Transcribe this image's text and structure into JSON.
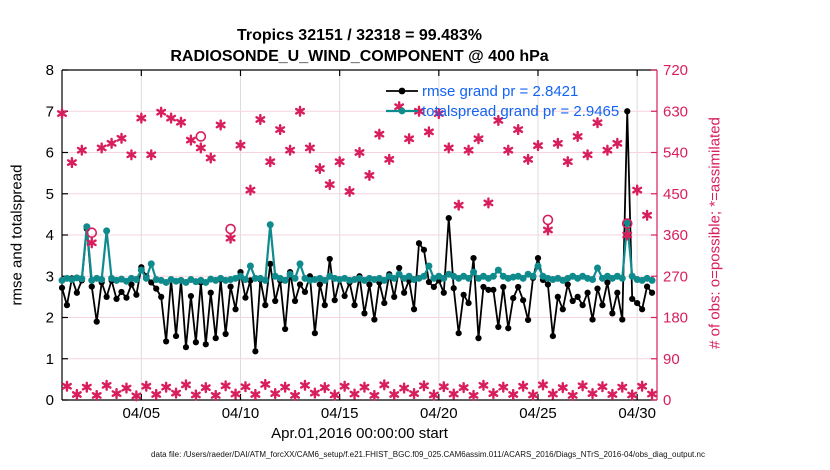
{
  "figure": {
    "footer": "data file: /Users/raeder/DAI/ATM_forcXX/CAM6_setup/f.e21.FHIST_BGC.f09_025.CAM6assim.011/ACARS_2016/Diags_NTrS_2016-04/obs_diag_output.nc"
  },
  "chart_data": {
    "type": "line",
    "title": "Tropics 32151 / 32318 = 99.483%",
    "subtitle": "RADIOSONDE_U_WIND_COMPONENT @ 400 hPa",
    "xlabel": "Apr.01,2016 00:00:00 start",
    "ylabel_left": "rmse and totalspread",
    "ylabel_right": "# of obs: o=possible; *=assimilated",
    "ylim_left": [
      0,
      8
    ],
    "ylim_right": [
      0,
      720
    ],
    "yticks_left": [
      0,
      1,
      2,
      3,
      4,
      5,
      6,
      7,
      8
    ],
    "yticks_right": [
      0,
      90,
      180,
      270,
      360,
      450,
      540,
      630,
      720
    ],
    "xticks": [
      {
        "day": 5,
        "label": "04/05"
      },
      {
        "day": 10,
        "label": "04/10"
      },
      {
        "day": 15,
        "label": "04/15"
      },
      {
        "day": 20,
        "label": "04/20"
      },
      {
        "day": 25,
        "label": "04/25"
      },
      {
        "day": 30,
        "label": "04/30"
      }
    ],
    "xlim_days": [
      1,
      31
    ],
    "x_start_day": 1,
    "x_bin_hours": 6,
    "rmse_grand_mean": "2.8421",
    "totalspread_grand_mean": "2.9465",
    "legend": [
      {
        "series": "rmse",
        "label": "rmse grand pr = 2.8421"
      },
      {
        "series": "totalspread",
        "label": "totalspread grand pr = 2.9465"
      }
    ],
    "colors": {
      "rmse": "#000000",
      "totalspread": "#0f8b8d",
      "obs": "#d81e5c",
      "legend_text": "#1464f4",
      "grid_vertical": "#dcdcdc",
      "grid_horizontal": "#f6d3dd",
      "axis": "#000000"
    },
    "series": {
      "rmse": [
        2.72,
        2.3,
        2.95,
        2.6,
        2.9,
        4.15,
        2.75,
        1.9,
        2.85,
        2.5,
        2.9,
        2.45,
        2.62,
        2.48,
        2.8,
        2.55,
        3.22,
        3.0,
        2.85,
        2.7,
        2.5,
        1.42,
        2.92,
        1.55,
        2.9,
        1.28,
        2.52,
        1.4,
        2.85,
        1.35,
        2.6,
        1.5,
        2.92,
        1.6,
        2.75,
        2.2,
        3.1,
        2.48,
        2.9,
        1.18,
        2.92,
        2.3,
        3.3,
        2.4,
        2.9,
        1.72,
        3.1,
        2.4,
        2.8,
        2.62,
        3.0,
        1.62,
        2.8,
        2.3,
        3.42,
        2.42,
        2.92,
        2.52,
        2.85,
        2.3,
        3.0,
        2.1,
        2.8,
        1.95,
        2.85,
        2.35,
        3.05,
        2.5,
        3.2,
        2.6,
        2.9,
        2.2,
        3.8,
        3.64,
        2.86,
        2.74,
        2.9,
        2.6,
        4.41,
        2.71,
        1.62,
        2.55,
        2.35,
        3.44,
        1.5,
        2.74,
        2.67,
        2.67,
        1.77,
        2.74,
        1.74,
        2.47,
        2.74,
        2.42,
        1.94,
        2.96,
        3.44,
        2.91,
        2.8,
        1.55,
        2.5,
        2.2,
        2.8,
        2.4,
        2.5,
        2.3,
        2.6,
        1.95,
        2.7,
        2.3,
        2.85,
        2.1,
        2.6,
        1.95,
        7.0,
        2.45,
        2.35,
        2.2,
        2.75,
        2.6
      ],
      "totalspread": [
        2.9,
        2.95,
        2.92,
        2.96,
        2.94,
        4.2,
        2.9,
        2.95,
        2.92,
        4.1,
        2.95,
        2.9,
        2.93,
        2.88,
        2.95,
        2.92,
        3.15,
        2.95,
        3.3,
        2.92,
        2.9,
        2.85,
        2.92,
        2.88,
        2.9,
        2.85,
        2.92,
        2.87,
        2.9,
        2.85,
        2.93,
        2.9,
        2.95,
        2.9,
        2.92,
        2.95,
        3.0,
        2.92,
        3.25,
        2.95,
        2.95,
        2.9,
        4.25,
        3.0,
        2.95,
        2.9,
        3.05,
        2.95,
        3.3,
        2.95,
        2.9,
        2.92,
        2.95,
        2.9,
        3.0,
        2.95,
        2.92,
        2.95,
        2.9,
        2.92,
        2.95,
        2.9,
        2.95,
        2.92,
        2.95,
        2.9,
        3.0,
        2.95,
        3.05,
        2.95,
        3.0,
        2.92,
        2.95,
        3.0,
        3.25,
        2.95,
        3.0,
        2.95,
        3.05,
        3.0,
        2.95,
        3.0,
        2.95,
        3.1,
        2.95,
        3.0,
        2.95,
        3.0,
        3.15,
        3.0,
        2.95,
        2.98,
        3.0,
        2.95,
        3.05,
        3.0,
        3.25,
        3.0,
        2.95,
        2.92,
        2.95,
        2.9,
        2.95,
        3.0,
        2.95,
        3.0,
        2.95,
        2.92,
        3.2,
        2.95,
        3.0,
        2.95,
        3.0,
        2.95,
        4.3,
        3.0,
        2.92,
        2.9,
        2.95,
        2.9
      ],
      "obs_assimilated": [
        625,
        30,
        518,
        12,
        545,
        28,
        343,
        10,
        550,
        32,
        560,
        14,
        571,
        26,
        535,
        9,
        615,
        30,
        535,
        12,
        628,
        28,
        615,
        15,
        606,
        33,
        567,
        11,
        550,
        27,
        528,
        10,
        600,
        31,
        353,
        13,
        556,
        29,
        458,
        12,
        612,
        34,
        520,
        14,
        590,
        28,
        545,
        10,
        630,
        32,
        550,
        15,
        505,
        27,
        470,
        11,
        520,
        30,
        455,
        13,
        540,
        28,
        490,
        10,
        580,
        33,
        525,
        12,
        640,
        26,
        570,
        14,
        630,
        31,
        585,
        11,
        625,
        29,
        550,
        13,
        425,
        27,
        545,
        10,
        570,
        32,
        430,
        14,
        610,
        28,
        545,
        12,
        590,
        30,
        525,
        11,
        555,
        33,
        371,
        13,
        560,
        27,
        520,
        10,
        575,
        31,
        535,
        14,
        605,
        29,
        545,
        12,
        560,
        28,
        360,
        11,
        458,
        30,
        403,
        13
      ],
      "obs_possible_extra": {
        "6": 22,
        "28": 25,
        "34": 20,
        "98": 22,
        "114": 25
      }
    }
  }
}
